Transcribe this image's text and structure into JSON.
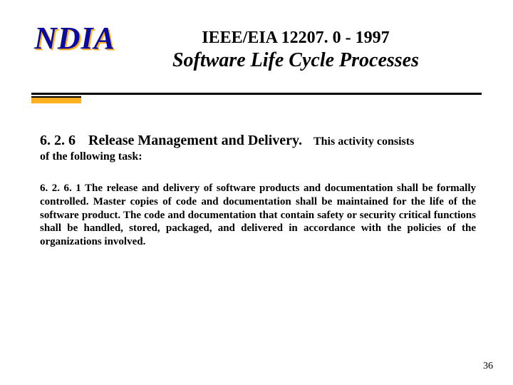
{
  "logo": {
    "text": "NDIA",
    "fg_color": "#0a0a9e",
    "shadow_color": "#ffb020"
  },
  "title": {
    "line1": "IEEE/EIA 12207. 0 - 1997",
    "line2": "Software Life Cycle Processes"
  },
  "divider": {
    "bar_color": "#000000",
    "accent_color": "#ffb020"
  },
  "section": {
    "number": "6. 2. 6",
    "heading": "Release Management and Delivery.",
    "lead_in": "This activity consists",
    "lead_in_cont": "of the following task:"
  },
  "paragraph": {
    "number": "6. 2. 6. 1",
    "body": "The release and delivery of software products and documentation shall be formally controlled.  Master copies of code and documentation shall be maintained for the life of the software product.  The code and documentation that contain safety or security critical functions shall be handled, stored, packaged, and delivered in accordance with the policies of the organizations involved."
  },
  "page_number": "36"
}
